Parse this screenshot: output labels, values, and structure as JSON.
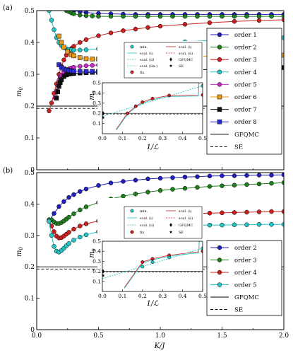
{
  "chart_data": [
    {
      "type": "line",
      "panel_label": "(a)",
      "ylabel": "m_0",
      "xlim": [
        0,
        2.0
      ],
      "ylim": [
        0,
        0.5
      ],
      "yticks": [
        "0",
        "0.1",
        "0.2",
        "0.3",
        "0.4",
        "0.5"
      ],
      "legend_position": "right",
      "legend_entries": [
        "order 1",
        "order 2",
        "order 3",
        "order 4",
        "order 5",
        "order 6",
        "order 7",
        "order 8",
        "GFQMC",
        "SE"
      ],
      "gfqmc": 0.2,
      "se": 0.193,
      "series": [
        {
          "name": "order 1",
          "color": "#1f1fbf",
          "marker": "circle",
          "x": [
            0.3,
            0.35,
            0.4,
            0.5,
            0.6,
            0.7,
            0.8,
            0.9,
            1.0,
            1.1,
            1.2,
            1.3,
            1.4,
            1.5,
            1.6,
            1.7,
            1.8,
            1.9,
            2.0
          ],
          "y": [
            0.5,
            0.497,
            0.494,
            0.491,
            0.49,
            0.489,
            0.488,
            0.488,
            0.488,
            0.488,
            0.488,
            0.488,
            0.488,
            0.488,
            0.488,
            0.488,
            0.488,
            0.488,
            0.488
          ]
        },
        {
          "name": "order 2",
          "color": "#1f7f1f",
          "marker": "circle",
          "x": [
            0.24,
            0.26,
            0.28,
            0.3,
            0.35,
            0.4,
            0.45,
            0.5,
            0.6,
            0.7,
            0.8,
            0.9,
            1.0,
            1.1,
            1.2,
            1.3,
            1.4,
            1.5,
            1.6,
            1.7,
            1.8,
            1.9,
            2.0
          ],
          "y": [
            0.5,
            0.497,
            0.493,
            0.49,
            0.486,
            0.484,
            0.483,
            0.482,
            0.482,
            0.482,
            0.482,
            0.482,
            0.482,
            0.482,
            0.482,
            0.482,
            0.482,
            0.482,
            0.482,
            0.482,
            0.482,
            0.482,
            0.482
          ]
        },
        {
          "name": "order 3",
          "color": "#cc1f1f",
          "marker": "circle",
          "x": [
            0.1,
            0.12,
            0.14,
            0.16,
            0.18,
            0.2,
            0.22,
            0.24,
            0.26,
            0.28,
            0.3,
            0.35,
            0.4,
            0.5,
            0.6,
            0.7,
            0.8,
            0.9,
            1.0,
            1.2,
            1.4,
            1.6,
            1.8,
            2.0
          ],
          "y": [
            0.185,
            0.21,
            0.24,
            0.27,
            0.3,
            0.325,
            0.345,
            0.36,
            0.372,
            0.381,
            0.388,
            0.4,
            0.409,
            0.421,
            0.43,
            0.437,
            0.442,
            0.447,
            0.451,
            0.457,
            0.462,
            0.466,
            0.469,
            0.471
          ]
        },
        {
          "name": "order 4",
          "color": "#22c4c4",
          "marker": "circle",
          "x": [
            0.1,
            0.12,
            0.14,
            0.16,
            0.18,
            0.2,
            0.22,
            0.24,
            0.26,
            0.28,
            0.3,
            0.35,
            0.4,
            0.5,
            0.6,
            0.7,
            0.8,
            0.9,
            1.0,
            1.2,
            1.4,
            1.6,
            1.8,
            2.0
          ],
          "y": [
            0.5,
            0.47,
            0.44,
            0.415,
            0.4,
            0.39,
            0.384,
            0.38,
            0.378,
            0.377,
            0.376,
            0.376,
            0.377,
            0.38,
            0.384,
            0.388,
            0.391,
            0.394,
            0.397,
            0.402,
            0.406,
            0.409,
            0.412,
            0.415
          ]
        },
        {
          "name": "order 5",
          "color": "#c42fc4",
          "marker": "circle",
          "x": [
            0.15,
            0.16,
            0.17,
            0.18,
            0.19,
            0.2,
            0.22,
            0.24,
            0.26,
            0.28,
            0.3,
            0.35,
            0.4,
            0.45,
            0.5
          ],
          "y": [
            0.225,
            0.247,
            0.265,
            0.28,
            0.29,
            0.297,
            0.307,
            0.313,
            0.317,
            0.32,
            0.322,
            0.325,
            0.327,
            0.328,
            0.329
          ]
        },
        {
          "name": "order 6",
          "color": "#e89a1c",
          "marker": "square",
          "x": [
            0.18,
            0.2,
            0.22,
            0.25,
            0.28,
            0.3,
            0.35,
            0.4,
            0.45,
            0.5,
            0.55,
            0.6,
            0.65,
            0.7,
            0.8,
            0.9,
            1.0,
            1.2,
            1.4,
            1.6,
            1.8,
            2.0
          ],
          "y": [
            0.42,
            0.4,
            0.385,
            0.371,
            0.362,
            0.358,
            0.352,
            0.349,
            0.348,
            0.348,
            0.348,
            0.349,
            0.349,
            0.35,
            0.351,
            0.352,
            0.353,
            0.355,
            0.357,
            0.358,
            0.359,
            0.36
          ]
        },
        {
          "name": "order 7",
          "color": "#111111",
          "marker": "square",
          "x": [
            0.16,
            0.17,
            0.18,
            0.19,
            0.2,
            0.22,
            0.24,
            0.26,
            0.28,
            0.3,
            0.35,
            0.4,
            0.45,
            0.5,
            0.6,
            0.7,
            0.8,
            0.9,
            1.0,
            1.2,
            1.4,
            1.6,
            1.8,
            2.0
          ],
          "y": [
            0.225,
            0.245,
            0.262,
            0.274,
            0.283,
            0.293,
            0.298,
            0.301,
            0.302,
            0.303,
            0.304,
            0.305,
            0.306,
            0.306,
            0.307,
            0.308,
            0.309,
            0.31,
            0.311,
            0.313,
            0.315,
            0.317,
            0.319,
            0.321
          ]
        },
        {
          "name": "order 8",
          "color": "#2a2ad0",
          "marker": "square",
          "x": [
            0.18,
            0.2,
            0.22,
            0.24,
            0.26,
            0.28,
            0.3,
            0.35,
            0.4,
            0.45,
            0.5,
            0.6,
            0.7,
            0.8,
            0.9,
            1.0
          ],
          "y": [
            0.33,
            0.322,
            0.317,
            0.314,
            0.312,
            0.311,
            0.31,
            0.309,
            0.309,
            0.309,
            0.309,
            0.31,
            0.31,
            0.311,
            0.312,
            0.313
          ]
        }
      ],
      "inset": {
        "xlabel": "1/ℒ",
        "ylabel": "m_0",
        "xlim": [
          0,
          0.5
        ],
        "ylim": [
          0,
          0.5
        ],
        "xticks": [
          "0.0",
          "0.1",
          "0.2",
          "0.3",
          "0.4",
          "0.5"
        ],
        "yticks": [
          "0.1",
          "0.2",
          "0.3",
          "0.4",
          "0.5"
        ],
        "legend_entries": [
          "min.",
          "scal. (i)",
          "scal. (ii)",
          "scal. (lin.)",
          "fix.",
          "scal. (i)",
          "scal. (ii)",
          "GFQMC",
          "SE"
        ],
        "fix_points": {
          "x": [
            0.125,
            0.1667,
            0.2,
            0.25,
            0.3333,
            0.5
          ],
          "y": [
            0.2,
            0.27,
            0.31,
            0.345,
            0.375,
            0.38
          ]
        },
        "min_points": {
          "x": [
            0.5
          ],
          "y": [
            0.47
          ]
        },
        "gfqmc_point": {
          "x": 0.0,
          "y": 0.2
        },
        "se_point": {
          "x": 0.0,
          "y": 0.193
        }
      }
    },
    {
      "type": "line",
      "panel_label": "(b)",
      "xlabel": "K/J",
      "ylabel": "m_0",
      "xlim": [
        0,
        2.0
      ],
      "ylim": [
        0,
        0.5
      ],
      "xticks": [
        "0.0",
        "0.5",
        "1.0",
        "1.5",
        "2.0"
      ],
      "yticks": [
        "0",
        "0.1",
        "0.2",
        "0.3",
        "0.4",
        "0.5"
      ],
      "legend_position": "right",
      "legend_entries": [
        "order 2",
        "order 3",
        "order 4",
        "order 5",
        "GFQMC",
        "SE"
      ],
      "gfqmc": 0.2,
      "se": 0.193,
      "series": [
        {
          "name": "order 2",
          "color": "#1f1fbf",
          "marker": "circle",
          "x": [
            0.1,
            0.14,
            0.18,
            0.22,
            0.26,
            0.3,
            0.35,
            0.4,
            0.5,
            0.6,
            0.7,
            0.8,
            0.9,
            1.0,
            1.1,
            1.2,
            1.3,
            1.4,
            1.5,
            1.6,
            1.7,
            1.8,
            1.9,
            2.0
          ],
          "y": [
            0.345,
            0.37,
            0.392,
            0.408,
            0.421,
            0.43,
            0.44,
            0.448,
            0.459,
            0.467,
            0.472,
            0.476,
            0.48,
            0.482,
            0.484,
            0.486,
            0.487,
            0.489,
            0.49,
            0.49,
            0.491,
            0.492,
            0.492,
            0.493
          ]
        },
        {
          "name": "order 3",
          "color": "#1f7f1f",
          "marker": "circle",
          "x": [
            0.1,
            0.12,
            0.14,
            0.16,
            0.18,
            0.2,
            0.22,
            0.24,
            0.26,
            0.3,
            0.35,
            0.4,
            0.5,
            0.6,
            0.7,
            0.8,
            0.9,
            1.0,
            1.1,
            1.2,
            1.3,
            1.4,
            1.5,
            1.6,
            1.7,
            1.8,
            1.9,
            2.0
          ],
          "y": [
            0.35,
            0.35,
            0.343,
            0.338,
            0.338,
            0.341,
            0.346,
            0.352,
            0.358,
            0.369,
            0.381,
            0.391,
            0.405,
            0.416,
            0.425,
            0.432,
            0.438,
            0.443,
            0.447,
            0.45,
            0.453,
            0.456,
            0.458,
            0.46,
            0.462,
            0.464,
            0.466,
            0.468
          ]
        },
        {
          "name": "order 4",
          "color": "#cc1f1f",
          "marker": "circle",
          "x": [
            0.1,
            0.12,
            0.14,
            0.16,
            0.18,
            0.2,
            0.22,
            0.24,
            0.26,
            0.3,
            0.35,
            0.4,
            0.5,
            0.6,
            0.7,
            0.8,
            0.9,
            1.0,
            1.1,
            1.2,
            1.3,
            1.4,
            1.5,
            1.6,
            1.7,
            1.8,
            1.9,
            2.0
          ],
          "y": [
            0.345,
            0.33,
            0.312,
            0.298,
            0.292,
            0.293,
            0.298,
            0.304,
            0.31,
            0.32,
            0.33,
            0.337,
            0.346,
            0.352,
            0.357,
            0.36,
            0.363,
            0.365,
            0.367,
            0.369,
            0.37,
            0.371,
            0.372,
            0.373,
            0.374,
            0.375,
            0.376,
            0.376
          ]
        },
        {
          "name": "order 5",
          "color": "#22c4c4",
          "marker": "circle",
          "x": [
            0.1,
            0.12,
            0.14,
            0.16,
            0.18,
            0.2,
            0.22,
            0.24,
            0.26,
            0.3,
            0.35,
            0.4,
            0.5,
            0.6,
            0.7,
            0.8,
            0.9,
            1.0,
            1.1,
            1.2,
            1.3,
            1.4,
            1.5,
            1.6,
            1.7,
            1.8,
            1.9,
            2.0
          ],
          "y": [
            0.345,
            0.3,
            0.265,
            0.25,
            0.247,
            0.252,
            0.259,
            0.267,
            0.274,
            0.285,
            0.295,
            0.302,
            0.312,
            0.318,
            0.322,
            0.325,
            0.327,
            0.329,
            0.33,
            0.331,
            0.332,
            0.333,
            0.333,
            0.334,
            0.334,
            0.335,
            0.335,
            0.335
          ]
        }
      ],
      "inset": {
        "xlabel": "1/ℒ",
        "ylabel": "m_0",
        "xlim": [
          0,
          0.5
        ],
        "ylim": [
          0,
          0.5
        ],
        "xticks": [
          "0.0",
          "0.1",
          "0.2",
          "0.3",
          "0.4",
          "0.5"
        ],
        "yticks": [
          "0.1",
          "0.2",
          "0.3",
          "0.4",
          "0.5"
        ],
        "legend_entries": [
          "min.",
          "scal. (i)",
          "scal. (ii)",
          "fix.",
          "scal. (i)",
          "scal. (ii)",
          "GFQMC",
          "SE"
        ],
        "fix_points": {
          "x": [
            0.2,
            0.25,
            0.3333,
            0.5
          ],
          "y": [
            0.293,
            0.325,
            0.36,
            0.4
          ]
        },
        "min_points": {
          "x": [
            0.2,
            0.25,
            0.3333,
            0.5
          ],
          "y": [
            0.247,
            0.292,
            0.338,
            0.43
          ]
        },
        "gfqmc_point": {
          "x": 0.0,
          "y": 0.2
        },
        "se_point": {
          "x": 0.0,
          "y": 0.193
        }
      }
    }
  ]
}
